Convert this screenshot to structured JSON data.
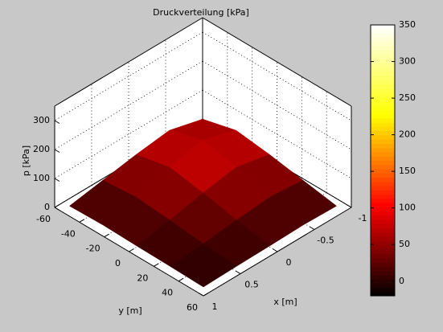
{
  "chart_data": {
    "type": "surface",
    "title": "Druckverteilung   [kPa]",
    "xlabel": "x   [m]",
    "ylabel": "y   [m]",
    "zlabel": "p   [kPa]",
    "x": [
      -0.9,
      -0.45,
      0,
      0.45,
      0.9
    ],
    "y": [
      -54,
      -27,
      0,
      27,
      54
    ],
    "z": [
      [
        30,
        60,
        45,
        25,
        5
      ],
      [
        60,
        95,
        70,
        35,
        8
      ],
      [
        45,
        70,
        50,
        25,
        5
      ],
      [
        25,
        35,
        25,
        12,
        3
      ],
      [
        5,
        8,
        5,
        3,
        0
      ]
    ],
    "xlim": [
      -1,
      1
    ],
    "xticks": [
      -1,
      -0.5,
      0,
      0.5,
      1
    ],
    "ylim": [
      -60,
      60
    ],
    "yticks": [
      -60,
      -40,
      -20,
      0,
      20,
      40,
      60
    ],
    "zlim": [
      0,
      350
    ],
    "zticks": [
      0,
      100,
      200,
      300
    ],
    "colormap": "hot",
    "clim": [
      -20,
      350
    ],
    "cticks": [
      0,
      50,
      100,
      150,
      200,
      250,
      300,
      350
    ],
    "grid": true
  }
}
